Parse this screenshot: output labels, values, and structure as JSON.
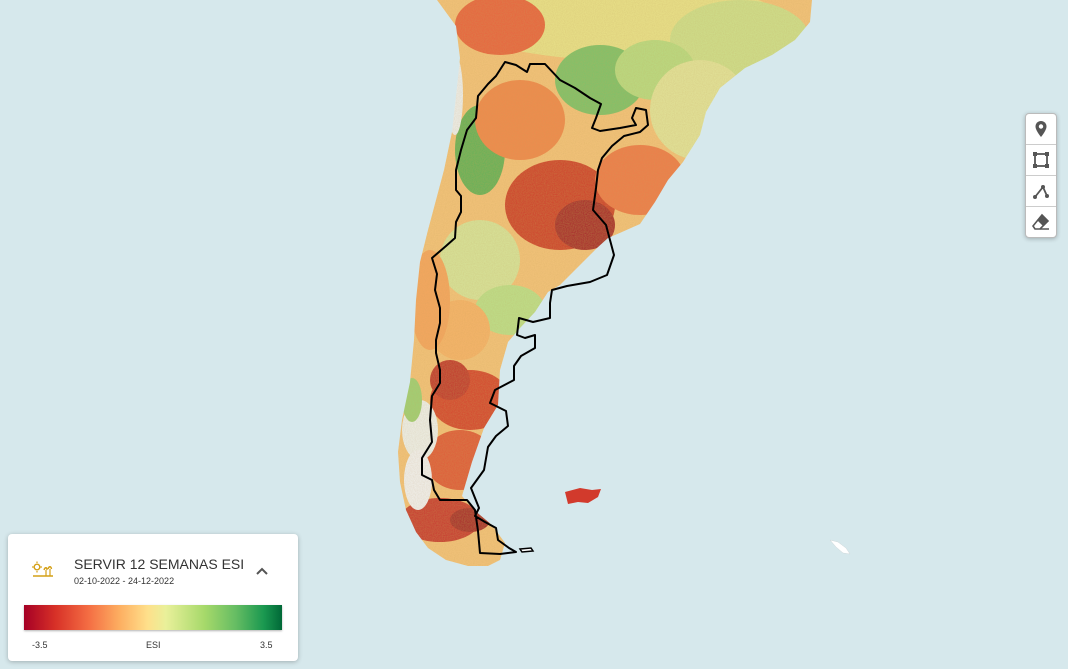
{
  "map": {
    "ocean_color": "#d6e8ec",
    "highlighted_country": "Argentina",
    "falkland_islands": "present",
    "south_georgia": "present"
  },
  "toolbar": {
    "tools": [
      {
        "name": "marker",
        "icon": "map-marker-icon"
      },
      {
        "name": "rectangle",
        "icon": "rectangle-icon"
      },
      {
        "name": "polyline",
        "icon": "polyline-icon"
      },
      {
        "name": "eraser",
        "icon": "eraser-icon"
      }
    ]
  },
  "legend": {
    "title": "SERVIR 12 SEMANAS ESI",
    "date_range": "02-10-2022 - 24-12-2022",
    "min_label": "-3.5",
    "mid_label": "ESI",
    "max_label": "3.5",
    "icon": "drought-index-icon",
    "collapse_icon": "chevron-up-icon",
    "colors": [
      "#a50026",
      "#f46d43",
      "#fee08b",
      "#a6d96a",
      "#006837"
    ]
  }
}
